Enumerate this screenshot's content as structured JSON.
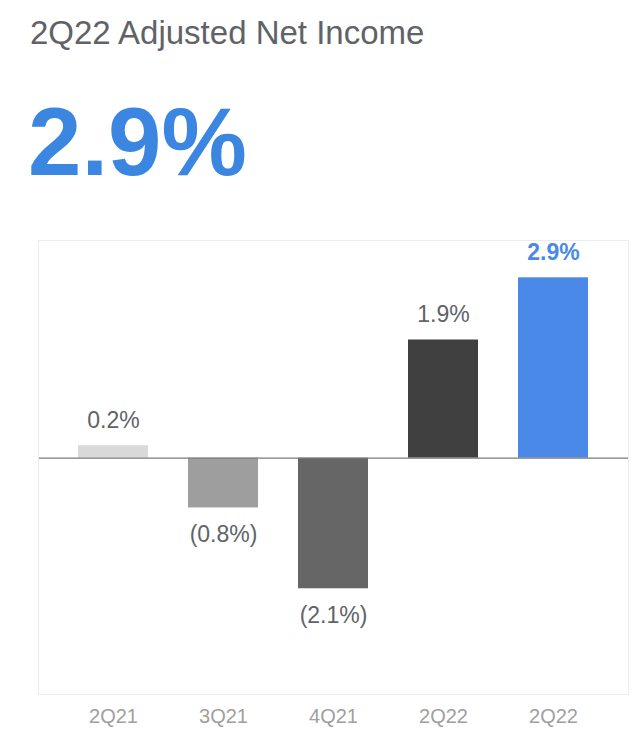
{
  "chart_data": {
    "type": "bar",
    "title": "2Q22 Adjusted Net Income",
    "subtitle": "2.9%",
    "categories": [
      "2Q21",
      "3Q21",
      "4Q21",
      "2Q22",
      "2Q22"
    ],
    "values": [
      0.2,
      -0.8,
      -2.1,
      1.9,
      2.9
    ],
    "value_labels": [
      "0.2%",
      "(0.8%)",
      "(2.1%)",
      "1.9%",
      "2.9%"
    ],
    "colors": [
      "#d9d9d9",
      "#9e9e9e",
      "#666666",
      "#404040",
      "#4a89e8"
    ],
    "ylim": [
      -3.8,
      3.5
    ],
    "yticks": [
      0
    ],
    "data_labels": true,
    "tick_labels": "x"
  }
}
